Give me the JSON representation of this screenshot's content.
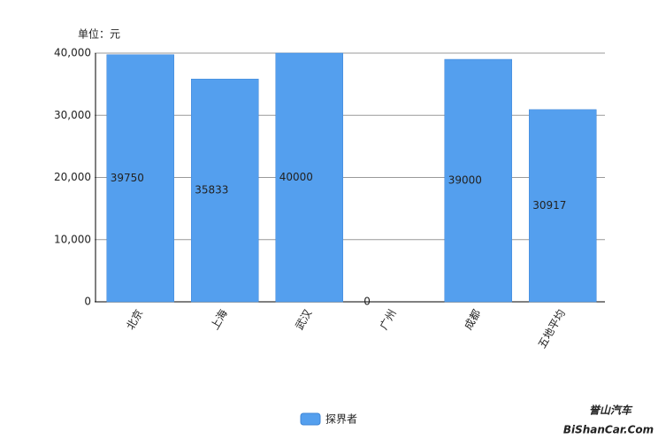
{
  "chart_data": {
    "type": "bar",
    "unit_label": "单位：元",
    "categories": [
      "北京",
      "上海",
      "武汉",
      "广州",
      "成都",
      "五地平均"
    ],
    "series": [
      {
        "name": "探界者",
        "color": "#549fee",
        "values": [
          39750,
          35833,
          40000,
          0,
          39000,
          30917
        ]
      }
    ],
    "ylim": [
      0,
      40000
    ],
    "yticks": [
      0,
      {
        "value": 10000,
        "label": "10,000"
      },
      {
        "value": 20000,
        "label": "20,000"
      },
      {
        "value": 30000,
        "label": "30,000"
      },
      {
        "value": 40000,
        "label": "40,000"
      }
    ],
    "grid": true,
    "legend": "bottom",
    "watermark": [
      "誉山汽车",
      "BiShanCar.Com"
    ]
  }
}
